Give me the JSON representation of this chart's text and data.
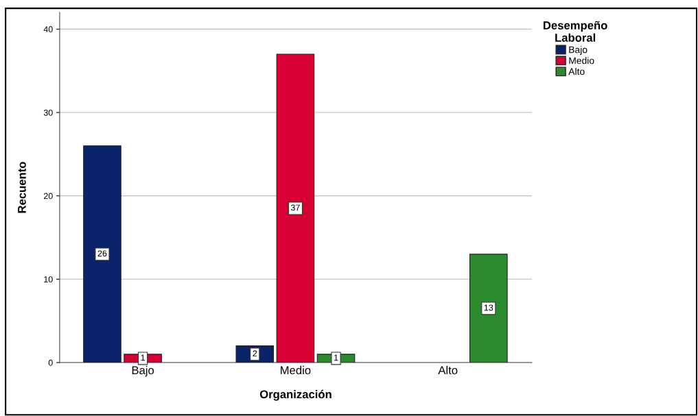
{
  "chart_data": {
    "type": "bar",
    "xlabel": "Organización",
    "ylabel": "Recuento",
    "legend_title": "Desempeño\nLaboral",
    "categories": [
      "Bajo",
      "Medio",
      "Alto"
    ],
    "series": [
      {
        "name": "Bajo",
        "color": "#0b2369",
        "values": [
          26,
          2,
          null
        ]
      },
      {
        "name": "Medio",
        "color": "#d60032",
        "values": [
          1,
          37,
          null
        ]
      },
      {
        "name": "Alto",
        "color": "#2b8a2b",
        "values": [
          null,
          1,
          13
        ]
      }
    ],
    "ylim": [
      0,
      42
    ],
    "yticks": [
      0,
      10,
      20,
      30,
      40
    ],
    "grid": "y",
    "legend": "top right",
    "data_labels": true
  }
}
